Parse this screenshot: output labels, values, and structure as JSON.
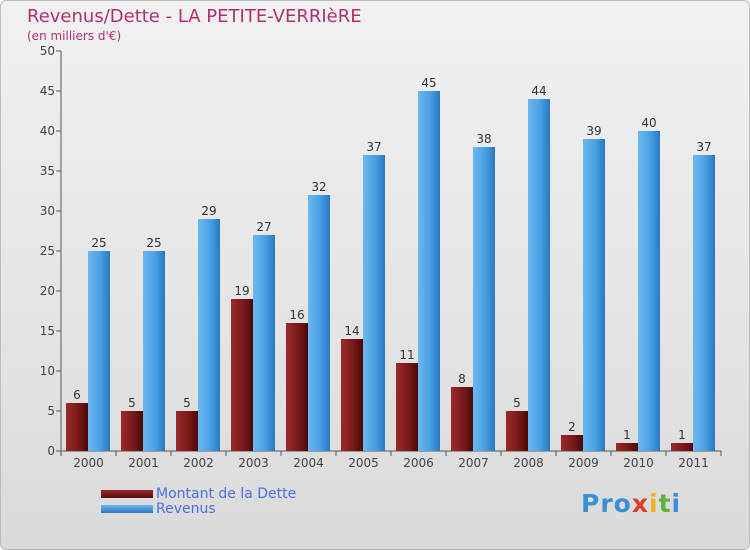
{
  "title": "Revenus/Dette - LA PETITE-VERRIèRE",
  "subtitle": "(en milliers d'€)",
  "brand": {
    "letters": [
      "P",
      "r",
      "o",
      "x",
      "i",
      "t",
      "i"
    ]
  },
  "colors": {
    "title": "#b0306e",
    "dette": "#7a1a1a",
    "revenus": "#4aa0e4",
    "legend_text": "#4a6fe0",
    "brand": [
      "#3a8ed8",
      "#3a8ed8",
      "#3a8ed8",
      "#e23a2a",
      "#f0b020",
      "#5ab43c",
      "#3a8ed8"
    ]
  },
  "chart_data": {
    "type": "bar",
    "categories": [
      "2000",
      "2001",
      "2002",
      "2003",
      "2004",
      "2005",
      "2006",
      "2007",
      "2008",
      "2009",
      "2010",
      "2011"
    ],
    "series": [
      {
        "name": "Montant de la Dette",
        "values": [
          6,
          5,
          5,
          19,
          16,
          14,
          11,
          8,
          5,
          2,
          1,
          1
        ]
      },
      {
        "name": "Revenus",
        "values": [
          25,
          25,
          29,
          27,
          32,
          37,
          45,
          38,
          44,
          39,
          40,
          37
        ]
      }
    ],
    "ylim": [
      0,
      50
    ],
    "yticks": [
      0,
      5,
      10,
      15,
      20,
      25,
      30,
      35,
      40,
      45,
      50
    ],
    "grid": false,
    "legend_position": "bottom-left"
  }
}
